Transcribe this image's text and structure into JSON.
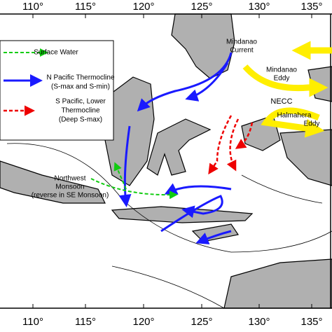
{
  "map": {
    "longitude_labels": [
      "110°",
      "115°",
      "120°",
      "125°",
      "130°",
      "135°"
    ],
    "legend": [
      {
        "lines": [
          "Surface Water"
        ]
      },
      {
        "lines": [
          "N Pacific Thermocline",
          "(S-max and S-min)"
        ]
      },
      {
        "lines": [
          "S Pacific, Lower",
          "Thermocline",
          "(Deep S-max)"
        ]
      }
    ],
    "labels": {
      "mindanao_current": [
        "Mindanao",
        "Current"
      ],
      "mindanao_eddy": [
        "Mindanao",
        "Eddy"
      ],
      "necc": "NECC",
      "halmahera_eddy": [
        "Halmahera",
        "Eddy"
      ],
      "monsoon": [
        "Northwest",
        "Monsoon",
        "(reverse in SE Monsoon)"
      ]
    }
  }
}
